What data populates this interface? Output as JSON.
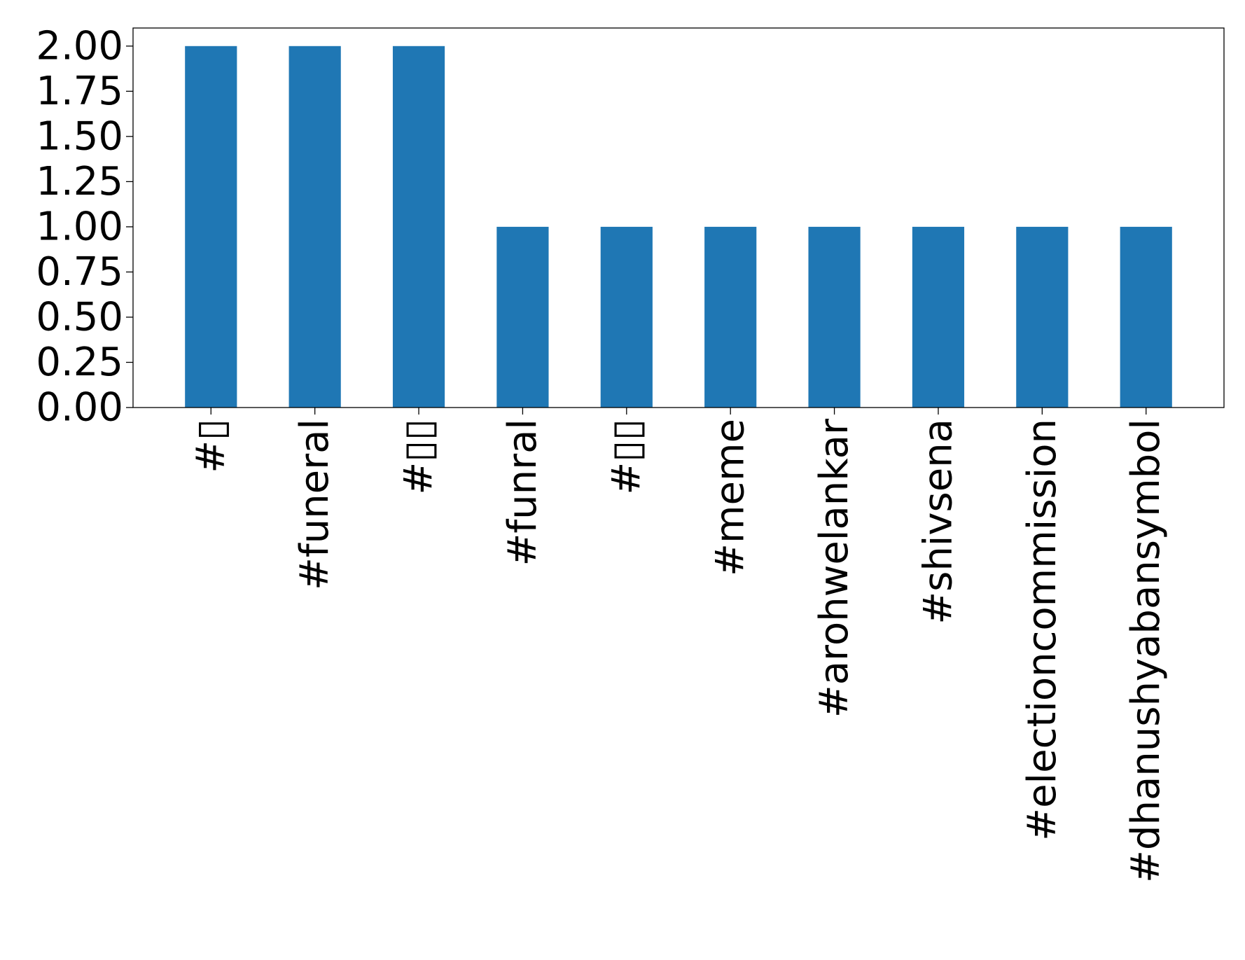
{
  "chart_data": {
    "type": "bar",
    "title": "",
    "xlabel": "",
    "ylabel": "",
    "categories": [
      "#▯",
      "#funeral",
      "#▯▯",
      "#funral",
      "#▯▯",
      "#meme",
      "#arohwelankar",
      "#shivsena",
      "#electioncommission",
      "#dhanushyabansymbol"
    ],
    "values": [
      2,
      2,
      2,
      1,
      1,
      1,
      1,
      1,
      1,
      1
    ],
    "ylim": [
      0,
      2.1
    ],
    "yticks": [
      0.0,
      0.25,
      0.5,
      0.75,
      1.0,
      1.25,
      1.5,
      1.75,
      2.0
    ],
    "ytick_labels": [
      "0.00",
      "0.25",
      "0.50",
      "0.75",
      "1.00",
      "1.25",
      "1.50",
      "1.75",
      "2.00"
    ],
    "grid": false,
    "legend": false,
    "bar_color": "#1f77b4",
    "x_tick_rotation": "vertical"
  }
}
